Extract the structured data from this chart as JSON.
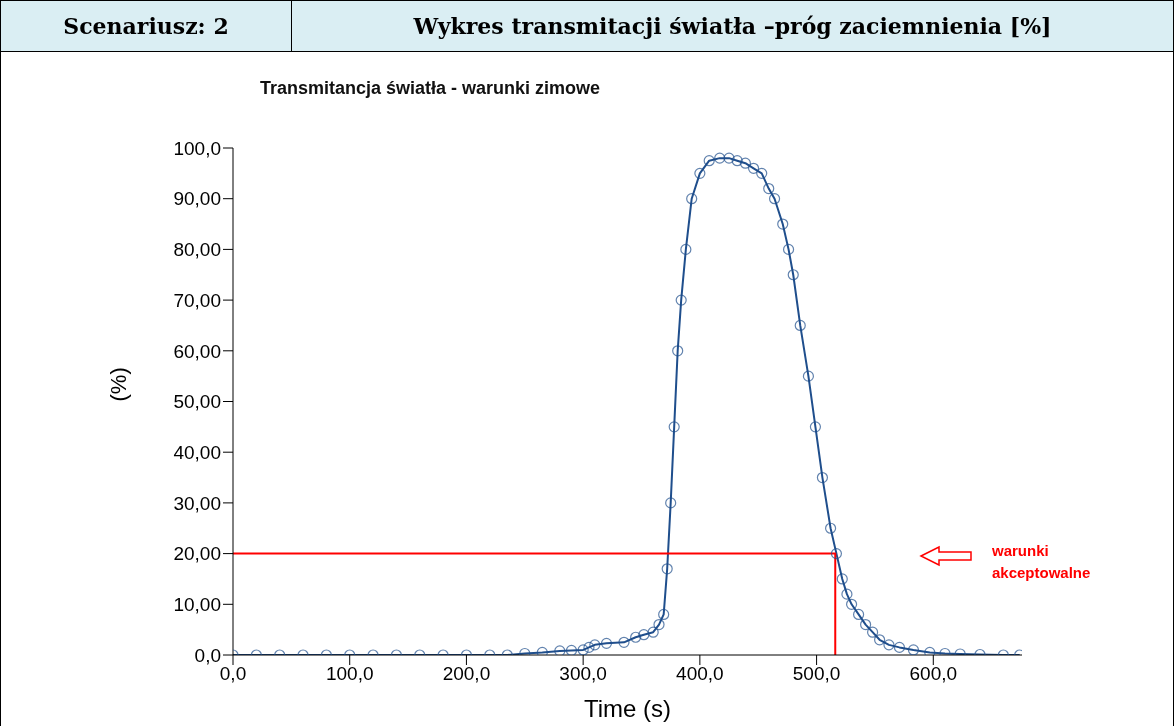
{
  "chart_data": {
    "type": "line",
    "title": "Wykres transmitacji światła –próg zaciemnienia [%]",
    "subtitle": "Transmitancja światła  - warunki zimowe",
    "xlabel": "Time (s)",
    "ylabel": "(%)",
    "annotations": [
      "Scenariusz: 2",
      "warunki akceptowalne"
    ],
    "series": [
      {
        "color": "#1f4e8c",
        "marker": "circle",
        "x": [
          0,
          20,
          40,
          60,
          80,
          100,
          120,
          140,
          160,
          180,
          200,
          220,
          235,
          250,
          265,
          280,
          290,
          300,
          305,
          310,
          320,
          335,
          345,
          352,
          360,
          365,
          369,
          372,
          375,
          378,
          381,
          384,
          388,
          393,
          400,
          408,
          417,
          425,
          432,
          439,
          446,
          453,
          459,
          464,
          471,
          476,
          480,
          486,
          493,
          499,
          505,
          512,
          517,
          522,
          526,
          530,
          536,
          542,
          548,
          554,
          562,
          571,
          583,
          597,
          610,
          623,
          640,
          660,
          674
        ],
        "values": [
          0,
          0,
          0,
          0,
          0,
          0,
          0,
          0,
          0,
          0,
          0,
          0,
          0,
          0.3,
          0.5,
          0.8,
          0.9,
          1.0,
          1.5,
          2.0,
          2.3,
          2.5,
          3.5,
          4.0,
          4.5,
          6,
          8,
          17,
          30,
          45,
          60,
          70,
          80,
          90,
          95,
          97.5,
          98,
          98,
          97.5,
          97,
          96,
          95,
          92,
          90,
          85,
          80,
          75,
          65,
          55,
          45,
          35,
          25,
          20,
          15,
          12,
          10,
          8,
          6,
          4.5,
          3,
          2,
          1.5,
          1,
          0.5,
          0.3,
          0.2,
          0.1,
          0,
          0
        ]
      },
      {
        "color": "#ff0000",
        "marker": "none",
        "x": [
          0,
          516,
          516
        ],
        "values": [
          20,
          20,
          0
        ]
      }
    ],
    "xlim": [
      0,
      676
    ],
    "xticks": [
      {
        "value": 0,
        "label": "0,0"
      },
      {
        "value": 100,
        "label": "100,0"
      },
      {
        "value": 200,
        "label": "200,0"
      },
      {
        "value": 300,
        "label": "300,0"
      },
      {
        "value": 400,
        "label": "400,0"
      },
      {
        "value": 500,
        "label": "500,0"
      },
      {
        "value": 600,
        "label": "600,0"
      }
    ],
    "ylim": [
      0,
      100
    ],
    "yticks": [
      {
        "value": 0,
        "label": "0,0"
      },
      {
        "value": 10,
        "label": "10,00"
      },
      {
        "value": 20,
        "label": "20,00"
      },
      {
        "value": 30,
        "label": "30,00"
      },
      {
        "value": 40,
        "label": "40,00"
      },
      {
        "value": 50,
        "label": "50,00"
      },
      {
        "value": 60,
        "label": "60,00"
      },
      {
        "value": 70,
        "label": "70,00"
      },
      {
        "value": 80,
        "label": "80,00"
      },
      {
        "value": 90,
        "label": "90,00"
      },
      {
        "value": 100,
        "label": "100,0"
      }
    ],
    "line_style": "solid"
  }
}
